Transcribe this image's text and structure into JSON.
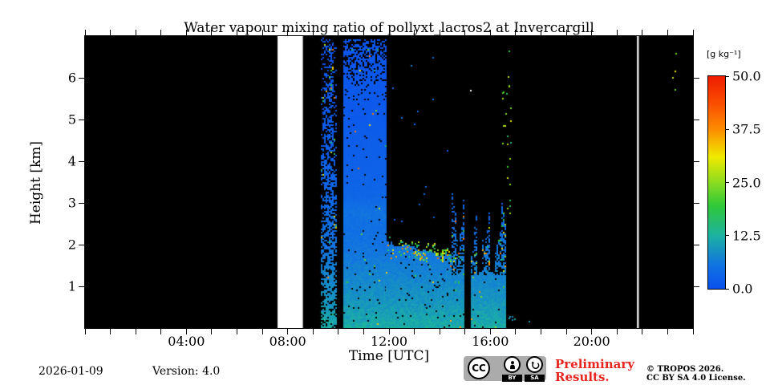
{
  "chart_data": {
    "type": "heatmap",
    "title": "Water vapour mixing ratio of pollyxt_lacros2 at Invercargill",
    "xlabel": "Time [UTC]",
    "ylabel": "Height [km]",
    "x_axis": {
      "range_hours": [
        0,
        24
      ],
      "minor_tick_step_hours": 1,
      "major_ticks": [
        {
          "h": 4,
          "label": "04:00"
        },
        {
          "h": 8,
          "label": "08:00"
        },
        {
          "h": 12,
          "label": "12:00"
        },
        {
          "h": 16,
          "label": "16:00"
        },
        {
          "h": 20,
          "label": "20:00"
        }
      ]
    },
    "y_axis": {
      "range_km": [
        0,
        7
      ],
      "ticks": [
        1,
        2,
        3,
        4,
        5,
        6
      ]
    },
    "colorbar": {
      "label": "[g kg⁻¹]",
      "min": 0,
      "max": 50,
      "ticks": [
        {
          "v": 50,
          "label": "50.0"
        },
        {
          "v": 37.5,
          "label": "37.5"
        },
        {
          "v": 25,
          "label": "25.0"
        },
        {
          "v": 12.5,
          "label": "12.5"
        },
        {
          "v": 0,
          "label": "0.0"
        }
      ],
      "gradient_stops": [
        {
          "at": 0.0,
          "color": "#0b50ee"
        },
        {
          "at": 0.11,
          "color": "#1173e2"
        },
        {
          "at": 0.25,
          "color": "#1cb2a2"
        },
        {
          "at": 0.39,
          "color": "#2fc838"
        },
        {
          "at": 0.5,
          "color": "#8adc20"
        },
        {
          "at": 0.62,
          "color": "#f0ea00"
        },
        {
          "at": 0.75,
          "color": "#fc8c00"
        },
        {
          "at": 0.88,
          "color": "#fa4a00"
        },
        {
          "at": 1.0,
          "color": "#ef1c00"
        }
      ]
    },
    "no_data_color": "#000000",
    "instrument_off_white_gaps_hours": [
      [
        7.6,
        8.6
      ],
      [
        21.79,
        21.86
      ]
    ],
    "mean_profile": {
      "surface_g_kg": 12,
      "scale_height_km": 2.6
    },
    "data_blocks": [
      {
        "t0": 9.3,
        "t1": 9.9,
        "h_top_km": 6.95,
        "style": "noisy",
        "description": "sparse noisy full-depth column"
      },
      {
        "t0": 10.2,
        "t1": 11.88,
        "h_top_km": 6.93,
        "style": "solid",
        "description": "full-depth moist layer, wisps near 2.7 km"
      },
      {
        "t0": 11.88,
        "t1": 14.47,
        "h_top_km": 2.05,
        "h_top_end_km": 1.72,
        "style": "low",
        "description": "data only below descending cloud base, green speckle at edge"
      },
      {
        "t0": 14.47,
        "t1": 14.99,
        "h_top_km": 2.6,
        "style": "spiky",
        "description": "speckled columns to ~2.8 km"
      },
      {
        "t0": 15.24,
        "t1": 16.62,
        "h_top_km": 2.4,
        "style": "spiky",
        "gaps": [
          [
            15.48,
            15.64
          ],
          [
            15.96,
            16.12
          ]
        ],
        "description": "speckled columns with black gaps"
      }
    ],
    "speckle_dots": [
      {
        "t0": 12.0,
        "t1": 14.4,
        "h0": 2.2,
        "h1": 6.7,
        "n": 14,
        "palette": "blue"
      },
      {
        "t0": 16.45,
        "t1": 16.8,
        "h0": 2.4,
        "h1": 6.8,
        "n": 26,
        "palette": "green"
      },
      {
        "t0": 23.1,
        "t1": 23.35,
        "h0": 5.2,
        "h1": 6.6,
        "n": 4,
        "palette": "green"
      },
      {
        "t0": 15.18,
        "t1": 15.22,
        "h0": 5.7,
        "h1": 5.75,
        "n": 1,
        "palette": "white"
      },
      {
        "t0": 16.6,
        "t1": 17.6,
        "h0": 0.05,
        "h1": 0.35,
        "n": 6,
        "palette": "cyan"
      }
    ]
  },
  "footer": {
    "date": "2026-01-09",
    "version": "Version: 4.0",
    "preliminary_line1": "Preliminary",
    "preliminary_line2": "Results.",
    "preliminary_color": "#e8251f",
    "copyright_line1": "© TROPOS 2026.",
    "copyright_line2": "CC BY SA 4.0 License.",
    "cc_badge": {
      "cc": "CC",
      "by": "BY",
      "sa": "SA"
    }
  }
}
